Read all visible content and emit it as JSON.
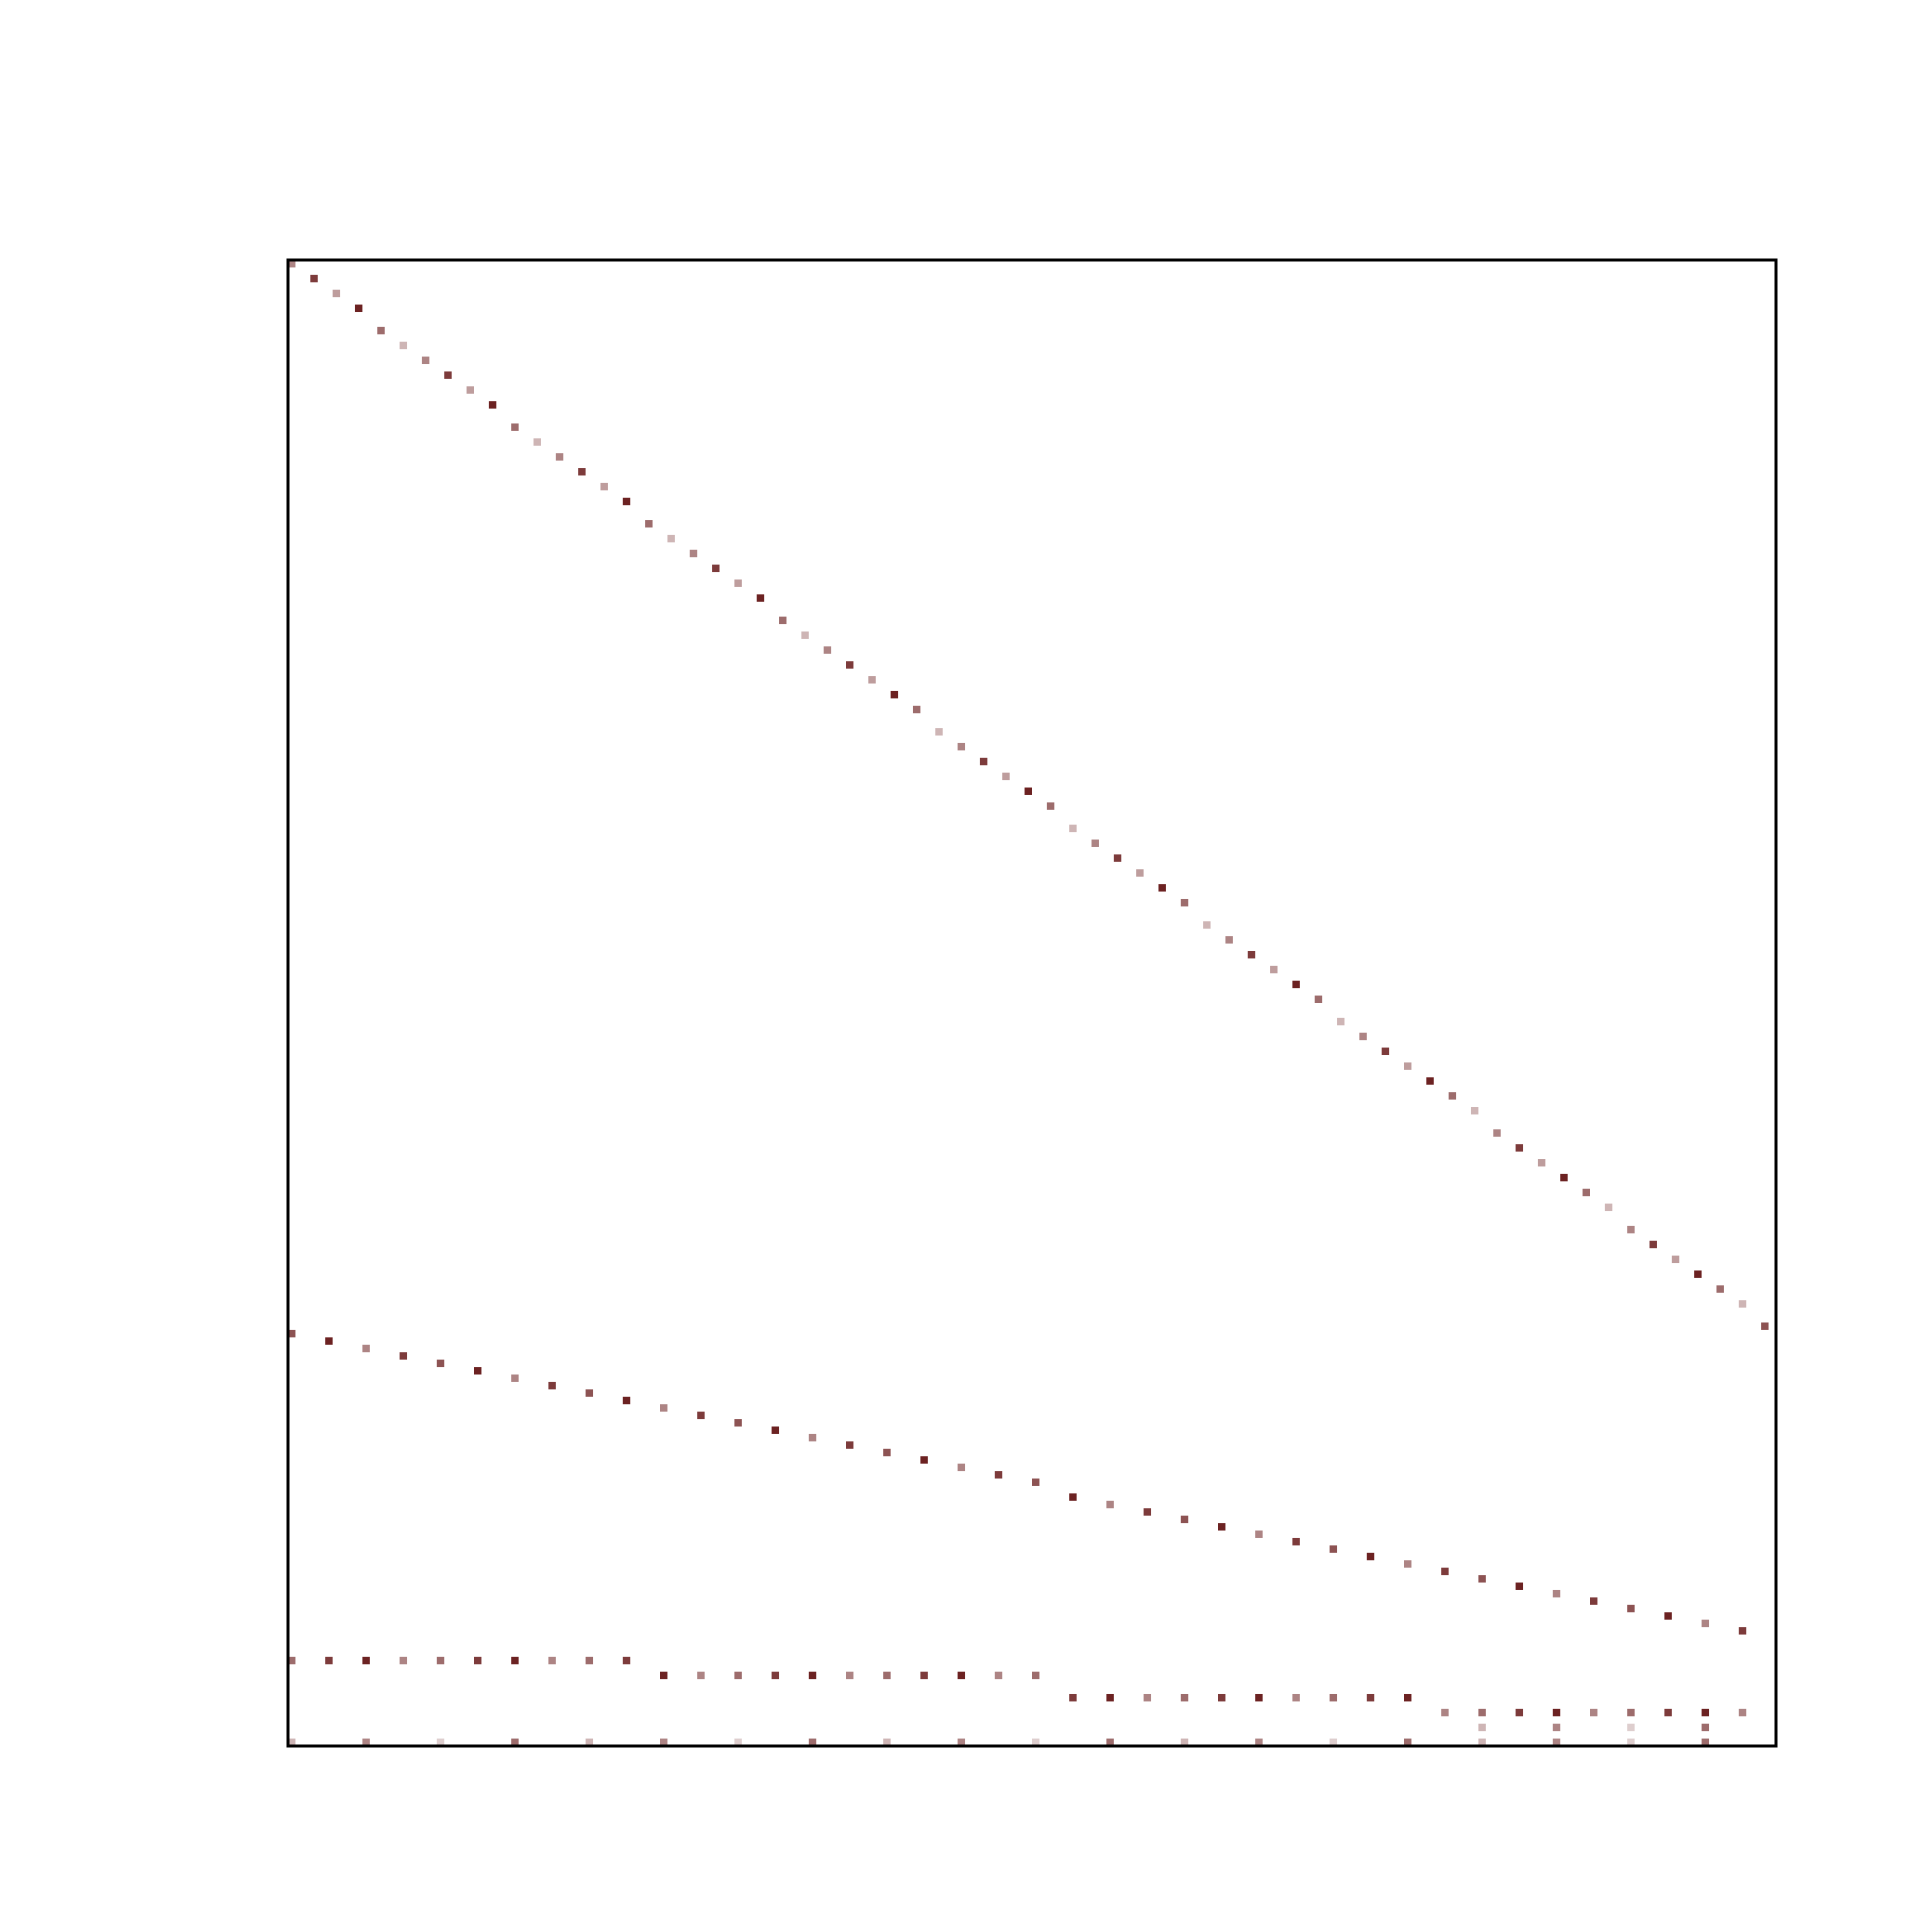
{
  "chart_data": {
    "type": "heatmap",
    "color": "#5c0a0a",
    "frame": true,
    "xlim": [
      0,
      200
    ],
    "ylim": [
      200,
      0
    ],
    "x": [
      0,
      3,
      6,
      9,
      12,
      15,
      18,
      21,
      24,
      27,
      30,
      33,
      36,
      39,
      42,
      45,
      48,
      51,
      54,
      57,
      60,
      63,
      66,
      69,
      72,
      75,
      78,
      81,
      84,
      87,
      90,
      93,
      96,
      99,
      102,
      105,
      108,
      111,
      114,
      117,
      120,
      123,
      126,
      129,
      132,
      135,
      138,
      141,
      144,
      147,
      150,
      153,
      156,
      159,
      162,
      165,
      168,
      171,
      174,
      177,
      180,
      183,
      186,
      189,
      192,
      195,
      198,
      0,
      5,
      10,
      15,
      20,
      25,
      30,
      35,
      40,
      45,
      50,
      55,
      60,
      65,
      70,
      75,
      80,
      85,
      90,
      95,
      100,
      105,
      110,
      115,
      120,
      125,
      130,
      135,
      140,
      145,
      150,
      155,
      160,
      165,
      170,
      175,
      180,
      185,
      190,
      195,
      0,
      5,
      10,
      15,
      20,
      25,
      30,
      35,
      40,
      45,
      50,
      55,
      60,
      65,
      70,
      75,
      80,
      85,
      90,
      95,
      100,
      105,
      110,
      115,
      120,
      125,
      130,
      135,
      140,
      145,
      150,
      155,
      160,
      165,
      170,
      175,
      180,
      185,
      190,
      195,
      0,
      10,
      20,
      30,
      40,
      50,
      60,
      70,
      80,
      90,
      100,
      110,
      120,
      130,
      140,
      150,
      160,
      170,
      180,
      190,
      160,
      170,
      180,
      190
    ],
    "y": [
      0,
      2,
      4,
      6,
      9,
      11,
      13,
      15,
      17,
      19,
      22,
      24,
      26,
      28,
      30,
      32,
      35,
      37,
      39,
      41,
      43,
      45,
      48,
      50,
      52,
      54,
      56,
      58,
      60,
      63,
      65,
      67,
      69,
      71,
      73,
      76,
      78,
      80,
      82,
      84,
      86,
      89,
      91,
      93,
      95,
      97,
      99,
      102,
      104,
      106,
      108,
      110,
      112,
      114,
      117,
      119,
      121,
      123,
      125,
      127,
      130,
      132,
      134,
      136,
      138,
      140,
      143,
      144,
      145,
      146,
      147,
      148,
      149,
      150,
      151,
      152,
      153,
      154,
      155,
      156,
      157,
      158,
      159,
      160,
      161,
      162,
      163,
      164,
      166,
      167,
      168,
      169,
      170,
      171,
      172,
      173,
      174,
      175,
      176,
      177,
      178,
      179,
      180,
      181,
      182,
      183,
      184,
      188,
      188,
      188,
      188,
      188,
      188,
      188,
      188,
      188,
      188,
      190,
      190,
      190,
      190,
      190,
      190,
      190,
      190,
      190,
      190,
      190,
      193,
      193,
      193,
      193,
      193,
      193,
      193,
      193,
      193,
      193,
      195,
      195,
      195,
      195,
      195,
      195,
      195,
      195,
      195,
      199,
      199,
      199,
      199,
      199,
      199,
      199,
      199,
      199,
      199,
      199,
      199,
      199,
      199,
      199,
      199,
      199,
      199,
      199,
      199,
      197,
      197,
      197,
      197
    ],
    "values": [
      0.5,
      0.8,
      0.4,
      0.9,
      0.6,
      0.3,
      0.5,
      0.8,
      0.4,
      0.9,
      0.6,
      0.3,
      0.5,
      0.8,
      0.4,
      0.9,
      0.6,
      0.3,
      0.5,
      0.8,
      0.4,
      0.9,
      0.6,
      0.3,
      0.5,
      0.8,
      0.4,
      0.9,
      0.6,
      0.3,
      0.5,
      0.8,
      0.4,
      0.9,
      0.6,
      0.3,
      0.5,
      0.8,
      0.4,
      0.9,
      0.6,
      0.3,
      0.5,
      0.8,
      0.4,
      0.9,
      0.6,
      0.3,
      0.5,
      0.8,
      0.4,
      0.9,
      0.6,
      0.3,
      0.5,
      0.8,
      0.4,
      0.9,
      0.6,
      0.3,
      0.5,
      0.8,
      0.4,
      0.9,
      0.6,
      0.3,
      0.7,
      0.7,
      0.9,
      0.5,
      0.8,
      0.7,
      0.9,
      0.5,
      0.8,
      0.7,
      0.9,
      0.5,
      0.8,
      0.7,
      0.9,
      0.5,
      0.8,
      0.7,
      0.9,
      0.5,
      0.8,
      0.7,
      0.9,
      0.5,
      0.8,
      0.7,
      0.9,
      0.5,
      0.8,
      0.7,
      0.9,
      0.5,
      0.8,
      0.7,
      0.9,
      0.5,
      0.8,
      0.7,
      0.9,
      0.5,
      0.8,
      0.6,
      0.8,
      0.9,
      0.5,
      0.6,
      0.8,
      0.9,
      0.5,
      0.6,
      0.8,
      0.9,
      0.5,
      0.6,
      0.8,
      0.9,
      0.5,
      0.6,
      0.8,
      0.9,
      0.5,
      0.6,
      0.8,
      0.9,
      0.5,
      0.6,
      0.8,
      0.9,
      0.5,
      0.6,
      0.8,
      0.9,
      0.5,
      0.6,
      0.8,
      0.9,
      0.5,
      0.6,
      0.8,
      0.9,
      0.5,
      0.3,
      0.5,
      0.2,
      0.6,
      0.3,
      0.5,
      0.2,
      0.6,
      0.3,
      0.5,
      0.2,
      0.6,
      0.3,
      0.5,
      0.2,
      0.6,
      0.3,
      0.5,
      0.2,
      0.6,
      0.3,
      0.5,
      0.2,
      0.6
    ]
  }
}
